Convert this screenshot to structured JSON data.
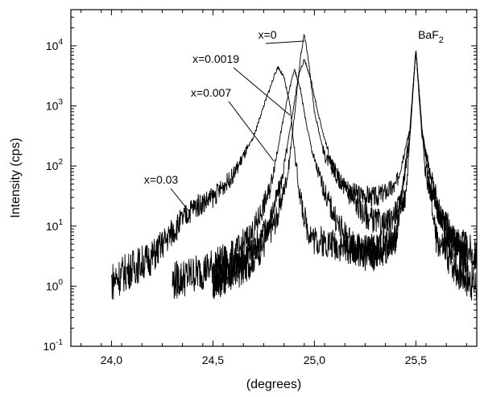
{
  "chart_data": {
    "type": "line",
    "title": "",
    "xlabel": "(degrees)",
    "ylabel": "Intensity (cps)",
    "xlim": [
      23.8,
      25.8
    ],
    "ylim": [
      0.1,
      40000
    ],
    "yscale": "log",
    "grid": false,
    "legend": "none",
    "x_ticks": [
      {
        "value": 24.0,
        "label": "24,0"
      },
      {
        "value": 24.5,
        "label": "24,5"
      },
      {
        "value": 25.0,
        "label": "25,0"
      },
      {
        "value": 25.5,
        "label": "25,5"
      }
    ],
    "y_ticks": [
      {
        "value": 0.1,
        "base": "10",
        "exp": "-1"
      },
      {
        "value": 1,
        "base": "10",
        "exp": "0"
      },
      {
        "value": 10,
        "base": "10",
        "exp": "1"
      },
      {
        "value": 100,
        "base": "10",
        "exp": "2"
      },
      {
        "value": 1000,
        "base": "10",
        "exp": "3"
      },
      {
        "value": 10000,
        "base": "10",
        "exp": "4"
      }
    ],
    "series": [
      {
        "name": "x=0",
        "x": [
          24.5,
          24.65,
          24.75,
          24.82,
          24.87,
          24.9,
          24.93,
          24.95,
          24.97,
          25.0,
          25.05,
          25.12,
          25.2,
          25.3,
          25.4,
          25.47,
          25.5,
          25.53,
          25.6,
          25.7,
          25.8
        ],
        "y": [
          1.2,
          2,
          5,
          15,
          80,
          600,
          6000,
          16000,
          6000,
          800,
          150,
          60,
          35,
          30,
          45,
          400,
          8500,
          400,
          20,
          6,
          3
        ]
      },
      {
        "name": "x=0.0019",
        "x": [
          24.5,
          24.6,
          24.7,
          24.78,
          24.84,
          24.88,
          24.92,
          24.95,
          24.98,
          25.02,
          25.08,
          25.15,
          25.25,
          25.35,
          25.45,
          25.5,
          25.55,
          25.65,
          25.75
        ],
        "y": [
          1.2,
          2,
          4,
          12,
          60,
          400,
          3000,
          6000,
          3000,
          700,
          120,
          40,
          15,
          10,
          30,
          8500,
          60,
          8,
          3
        ]
      },
      {
        "name": "x=0.007",
        "x": [
          24.3,
          24.45,
          24.6,
          24.7,
          24.78,
          24.83,
          24.87,
          24.9,
          24.93,
          24.96,
          25.0,
          25.06,
          25.12,
          25.2,
          25.3,
          25.4,
          25.47,
          25.5,
          25.53,
          25.65,
          25.75
        ],
        "y": [
          1.2,
          1.8,
          3,
          8,
          40,
          300,
          1500,
          4000,
          2000,
          500,
          120,
          30,
          10,
          4,
          3,
          6,
          300,
          8500,
          300,
          6,
          3
        ]
      },
      {
        "name": "x=0.03",
        "x": [
          24.0,
          24.1,
          24.2,
          24.3,
          24.4,
          24.5,
          24.6,
          24.7,
          24.75,
          24.8,
          24.82,
          24.85,
          24.88,
          24.9,
          24.93,
          24.96,
          25.0,
          25.1,
          25.2,
          25.3,
          25.4,
          25.47,
          25.5,
          25.53,
          25.6,
          25.7,
          25.8
        ],
        "y": [
          1.2,
          2,
          3,
          8,
          20,
          30,
          70,
          300,
          1000,
          3000,
          4500,
          3000,
          1000,
          200,
          30,
          10,
          6,
          5,
          4,
          4,
          6,
          400,
          8500,
          400,
          6,
          2,
          1
        ]
      }
    ],
    "annotations": [
      {
        "text": "x=0",
        "target_x": 24.95,
        "target_y": 12000
      },
      {
        "text": "x=0.0019",
        "target_x": 24.88,
        "target_y": 700
      },
      {
        "text": "x=0.007",
        "target_x": 24.8,
        "target_y": 120
      },
      {
        "text": "x=0.03",
        "target_x": 24.38,
        "target_y": 18
      }
    ],
    "peak_label": {
      "base": "BaF",
      "sub": "2"
    }
  }
}
